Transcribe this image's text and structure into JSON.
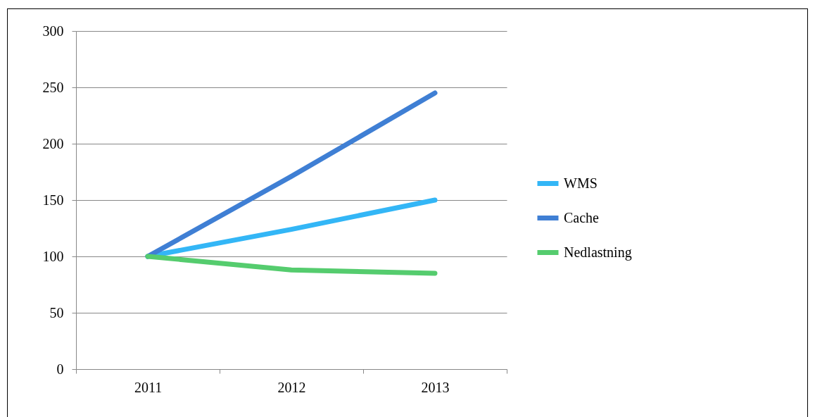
{
  "chart_data": {
    "type": "line",
    "categories": [
      "2011",
      "2012",
      "2013"
    ],
    "series": [
      {
        "name": "WMS",
        "color": "#33b6f6",
        "values": [
          100,
          124,
          150
        ]
      },
      {
        "name": "Cache",
        "color": "#3f7fd4",
        "values": [
          100,
          171,
          245
        ]
      },
      {
        "name": "Nedlastning",
        "color": "#55cc6e",
        "values": [
          100,
          88,
          85
        ]
      }
    ],
    "ylim": [
      0,
      300
    ],
    "yticks": [
      0,
      50,
      100,
      150,
      200,
      250,
      300
    ],
    "grid": "y",
    "legend": "right",
    "marker": "none",
    "line_style": "solid"
  }
}
